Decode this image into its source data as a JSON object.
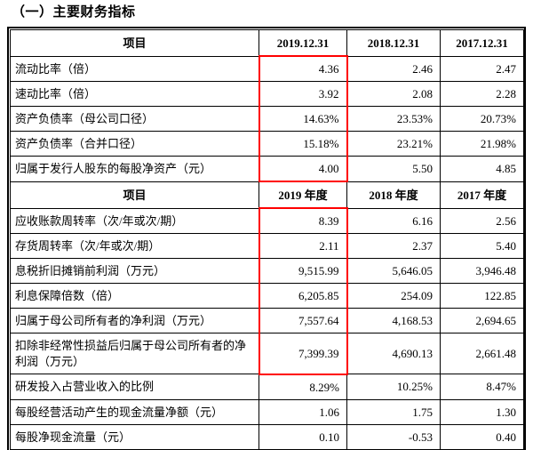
{
  "page_title": "（一）主要财务指标",
  "colors": {
    "highlight_box": "#ff0000",
    "table_border": "#000000",
    "text": "#000000",
    "background": "#ffffff"
  },
  "table": {
    "sections": [
      {
        "header": {
          "item_label": "项目",
          "columns": [
            "2019.12.31",
            "2018.12.31",
            "2017.12.31"
          ]
        },
        "rows": [
          {
            "label": "流动比率（倍）",
            "values": [
              "4.36",
              "2.46",
              "2.47"
            ],
            "highlighted": true
          },
          {
            "label": "速动比率（倍）",
            "values": [
              "3.92",
              "2.08",
              "2.28"
            ],
            "highlighted": true
          },
          {
            "label": "资产负债率（母公司口径）",
            "values": [
              "14.63%",
              "23.53%",
              "20.73%"
            ],
            "highlighted": true
          },
          {
            "label": "资产负债率（合并口径）",
            "values": [
              "15.18%",
              "23.21%",
              "21.98%"
            ],
            "highlighted": true
          },
          {
            "label": "归属于发行人股东的每股净资产（元）",
            "values": [
              "4.00",
              "5.50",
              "4.85"
            ],
            "highlighted": true
          }
        ]
      },
      {
        "header": {
          "item_label": "项目",
          "columns": [
            "2019 年度",
            "2018 年度",
            "2017 年度"
          ]
        },
        "rows": [
          {
            "label": "应收账款周转率（次/年或次/期）",
            "values": [
              "8.39",
              "6.16",
              "2.56"
            ],
            "highlighted": true
          },
          {
            "label": "存货周转率（次/年或次/期）",
            "values": [
              "2.11",
              "2.37",
              "5.40"
            ],
            "highlighted": true
          },
          {
            "label": "息税折旧摊销前利润（万元）",
            "values": [
              "9,515.99",
              "5,646.05",
              "3,946.48"
            ],
            "highlighted": true
          },
          {
            "label": "利息保障倍数（倍）",
            "values": [
              "6,205.85",
              "254.09",
              "122.85"
            ],
            "highlighted": true
          },
          {
            "label": "归属于母公司所有者的净利润（万元）",
            "values": [
              "7,557.64",
              "4,168.53",
              "2,694.65"
            ],
            "highlighted": true
          },
          {
            "label": "扣除非经常性损益后归属于母公司所有者的净利润（万元）",
            "values": [
              "7,399.39",
              "4,690.13",
              "2,661.48"
            ],
            "highlighted": true,
            "tall": true
          },
          {
            "label": "研发投入占营业收入的比例",
            "values": [
              "8.29%",
              "10.25%",
              "8.47%"
            ],
            "highlighted": false
          },
          {
            "label": "每股经营活动产生的现金流量净额（元）",
            "values": [
              "1.06",
              "1.75",
              "1.30"
            ],
            "highlighted": false
          },
          {
            "label": "每股净现金流量（元）",
            "values": [
              "0.10",
              "-0.53",
              "0.40"
            ],
            "highlighted": false
          }
        ]
      }
    ]
  }
}
